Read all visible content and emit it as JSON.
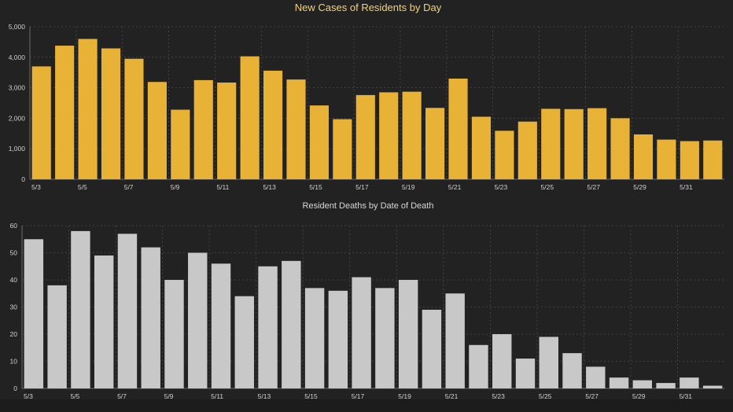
{
  "chart_data": [
    {
      "type": "bar",
      "title": "New Cases of Residents by Day",
      "color": "#e8b236",
      "categories": [
        "5/3",
        "5/4",
        "5/5",
        "5/6",
        "5/7",
        "5/8",
        "5/9",
        "5/10",
        "5/11",
        "5/12",
        "5/13",
        "5/14",
        "5/15",
        "5/16",
        "5/17",
        "5/18",
        "5/19",
        "5/20",
        "5/21",
        "5/22",
        "5/23",
        "5/24",
        "5/25",
        "5/26",
        "5/27",
        "5/28",
        "5/29",
        "5/30",
        "5/31",
        "6/1"
      ],
      "tick_labels": [
        "5/3",
        "5/5",
        "5/7",
        "5/9",
        "5/11",
        "5/13",
        "5/15",
        "5/17",
        "5/19",
        "5/21",
        "5/23",
        "5/25",
        "5/27",
        "5/29",
        "5/31"
      ],
      "values": [
        3700,
        4380,
        4600,
        4290,
        3950,
        3190,
        2280,
        3250,
        3170,
        4030,
        3560,
        3270,
        2420,
        1970,
        2760,
        2850,
        2870,
        2340,
        3300,
        2050,
        1590,
        1890,
        2310,
        2300,
        2330,
        2000,
        1470,
        1300,
        1250,
        1270
      ],
      "ylim": [
        0,
        5000
      ],
      "yticks": [
        "0",
        "1,000",
        "2,000",
        "3,000",
        "4,000",
        "5,000"
      ],
      "ytick_values": [
        0,
        1000,
        2000,
        3000,
        4000,
        5000
      ],
      "grid": true
    },
    {
      "type": "bar",
      "title": "Resident Deaths by Date of Death",
      "color": "#c8c8c8",
      "categories": [
        "5/3",
        "5/4",
        "5/5",
        "5/6",
        "5/7",
        "5/8",
        "5/9",
        "5/10",
        "5/11",
        "5/12",
        "5/13",
        "5/14",
        "5/15",
        "5/16",
        "5/17",
        "5/18",
        "5/19",
        "5/20",
        "5/21",
        "5/22",
        "5/23",
        "5/24",
        "5/25",
        "5/26",
        "5/27",
        "5/28",
        "5/29",
        "5/30",
        "5/31",
        "6/1"
      ],
      "tick_labels": [
        "5/3",
        "5/5",
        "5/7",
        "5/9",
        "5/11",
        "5/13",
        "5/15",
        "5/17",
        "5/19",
        "5/21",
        "5/23",
        "5/25",
        "5/27",
        "5/29",
        "5/31"
      ],
      "values": [
        55,
        38,
        58,
        49,
        57,
        52,
        40,
        50,
        46,
        34,
        45,
        47,
        37,
        36,
        41,
        37,
        40,
        29,
        35,
        16,
        20,
        11,
        19,
        13,
        8,
        4,
        3,
        2,
        4,
        1
      ],
      "ylim": [
        0,
        60
      ],
      "yticks": [
        "0",
        "10",
        "20",
        "30",
        "40",
        "50",
        "60"
      ],
      "ytick_values": [
        0,
        10,
        20,
        30,
        40,
        50,
        60
      ],
      "grid": true
    }
  ]
}
